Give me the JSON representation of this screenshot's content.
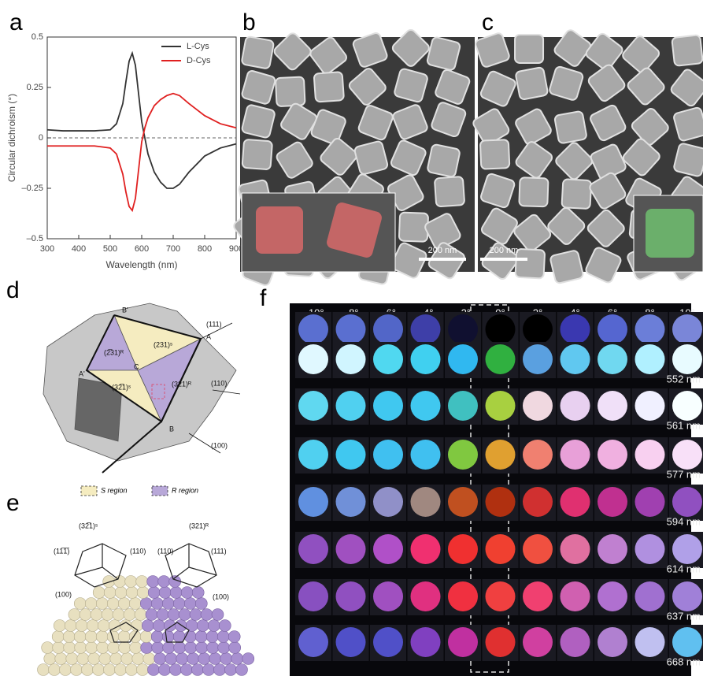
{
  "panel_labels": [
    "a",
    "b",
    "c",
    "d",
    "e",
    "f"
  ],
  "chart_data": {
    "type": "line",
    "x_label": "Wavelength (nm)",
    "y_label": "Circular dichroism (°)",
    "x": [
      300,
      350,
      400,
      450,
      500,
      520,
      540,
      550,
      560,
      570,
      580,
      590,
      600,
      610,
      620,
      640,
      660,
      680,
      700,
      720,
      750,
      800,
      850,
      900
    ],
    "series": [
      {
        "name": "L-Cys",
        "color": "#333333",
        "values": [
          0.04,
          0.035,
          0.035,
          0.035,
          0.04,
          0.07,
          0.17,
          0.28,
          0.38,
          0.42,
          0.36,
          0.22,
          0.08,
          0,
          -0.08,
          -0.17,
          -0.22,
          -0.25,
          -0.25,
          -0.23,
          -0.17,
          -0.09,
          -0.05,
          -0.03
        ]
      },
      {
        "name": "D-Cys",
        "color": "#e02020",
        "values": [
          -0.04,
          -0.04,
          -0.04,
          -0.04,
          -0.05,
          -0.08,
          -0.18,
          -0.27,
          -0.34,
          -0.36,
          -0.3,
          -0.16,
          -0.02,
          0.05,
          0.1,
          0.16,
          0.19,
          0.21,
          0.22,
          0.21,
          0.17,
          0.11,
          0.07,
          0.05
        ]
      }
    ],
    "xlim": [
      300,
      900
    ],
    "xticks": [
      300,
      400,
      500,
      600,
      700,
      800,
      900
    ],
    "ylim": [
      -0.5,
      0.5
    ],
    "yticks": [
      {
        "value": -0.5,
        "label": "–0.5"
      },
      {
        "value": -0.25,
        "label": "–0.25"
      },
      0,
      0.25,
      0.5
    ],
    "legend": "upper right"
  },
  "sem_images": {
    "scale_bars": [
      "200 nm",
      "200 nm"
    ]
  },
  "diagram_d": {
    "labels": [
      "B'",
      "(111)",
      "A",
      "(231)ˢ",
      "(2̅31)ᴿ",
      "A'",
      "C",
      "(32̅1)ˢ",
      "(321)ᴿ",
      "(110)",
      "B",
      "(100)"
    ],
    "legend": [
      "S region",
      "R region"
    ]
  },
  "diagram_e": {
    "labels": [
      "(32̅1)ˢ",
      "(321)ᴿ",
      "(11̅1̅)",
      "(110)",
      "(100)",
      "(110)",
      "(111)",
      "(100)"
    ]
  },
  "grid_f": {
    "columns": [
      "−10°",
      "−8°",
      "−6°",
      "−4°",
      "−2°",
      "0°",
      "2°",
      "4°",
      "6°",
      "8°",
      "10°"
    ],
    "rows": [
      "Achiral",
      "552 nm",
      "561 nm",
      "577 nm",
      "594 nm",
      "614 nm",
      "637 nm",
      "668 nm"
    ],
    "colors": [
      [
        "#5a6fd0",
        "#5a6fd0",
        "#5266c8",
        "#3e3fa8",
        "#101030",
        "#000000",
        "#000000",
        "#3a38b0",
        "#5566d0",
        "#6b7ed8",
        "#7a86d8"
      ],
      [
        "#e0f8ff",
        "#d0f5ff",
        "#50d8f0",
        "#40d0f0",
        "#30b8f0",
        "#30b040",
        "#5aa0e0",
        "#60c8f0",
        "#70d8f0",
        "#b0f0ff",
        "#e8fbff"
      ],
      [
        "#60d8f0",
        "#50d0f0",
        "#40c8f0",
        "#40c8f0",
        "#40c0c0",
        "#a8d040",
        "#f0d8e0",
        "#e8d0f0",
        "#f0e0f8",
        "#f0f0ff",
        "#f8ffff"
      ],
      [
        "#50d0f0",
        "#40c8f0",
        "#40c0f0",
        "#40c0f0",
        "#80c840",
        "#e0a030",
        "#f08070",
        "#e8a0d8",
        "#f0b0e0",
        "#f8d0f0",
        "#f8e0f8"
      ],
      [
        "#6090e0",
        "#7090d8",
        "#9090c8",
        "#a08880",
        "#c05020",
        "#b03010",
        "#d03030",
        "#e03070",
        "#c03090",
        "#a040b0",
        "#9050c0"
      ],
      [
        "#9050c0",
        "#a050c0",
        "#b050c8",
        "#f03070",
        "#f03030",
        "#f04030",
        "#f05040",
        "#e070a0",
        "#c080d0",
        "#b090e0",
        "#b0a0e8"
      ],
      [
        "#8850c0",
        "#9050c0",
        "#a050c0",
        "#e03080",
        "#f03040",
        "#f04040",
        "#f04070",
        "#d060b0",
        "#b070d0",
        "#a070d0",
        "#a080d8"
      ],
      [
        "#6060d0",
        "#5050c8",
        "#5050c8",
        "#8040c0",
        "#c030a0",
        "#e03030",
        "#d040a0",
        "#b060c0",
        "#b080d0",
        "#c0c0f0",
        "#60c0f0"
      ]
    ]
  }
}
